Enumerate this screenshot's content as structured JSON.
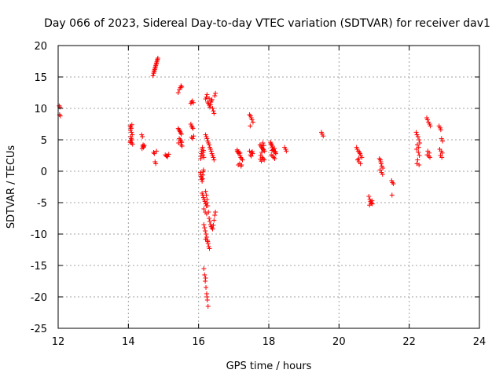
{
  "chart_data": {
    "type": "scatter",
    "title": "Day 066 of 2023, Sidereal Day-to-day VTEC variation (SDTVAR) for receiver dav1",
    "xlabel": "GPS time / hours",
    "ylabel": "SDTVAR / TECUs",
    "xlim": [
      12,
      24
    ],
    "ylim": [
      -25,
      20
    ],
    "xticks": [
      12,
      14,
      16,
      18,
      20,
      22,
      24
    ],
    "yticks": [
      -25,
      -20,
      -15,
      -10,
      -5,
      0,
      5,
      10,
      15,
      20
    ],
    "grid": true,
    "marker": "+",
    "color": "#ff0000",
    "series": [
      {
        "name": "dav1",
        "x": [
          12.03,
          12.05,
          12.04,
          12.06,
          14.05,
          14.07,
          14.08,
          14.1,
          14.06,
          14.09,
          14.11,
          14.07,
          14.08,
          14.1,
          14.06,
          14.09,
          14.12,
          14.05,
          14.38,
          14.4,
          14.42,
          14.44,
          14.41,
          14.43,
          14.39,
          14.45,
          14.7,
          14.72,
          14.74,
          14.76,
          14.78,
          14.8,
          14.82,
          14.84,
          14.73,
          14.77,
          14.81,
          14.79,
          14.75,
          14.83,
          14.72,
          14.74,
          14.76,
          14.78,
          14.8,
          15.05,
          15.08,
          15.1,
          15.12,
          15.15,
          15.42,
          15.45,
          15.48,
          15.5,
          15.52,
          15.44,
          15.47,
          15.49,
          15.51,
          15.46,
          15.43,
          15.5,
          15.53,
          15.42,
          15.45,
          15.48,
          15.5,
          15.52,
          15.78,
          15.8,
          15.82,
          15.85,
          15.78,
          15.8,
          15.82,
          15.84,
          15.86,
          15.8,
          15.83,
          16.05,
          16.06,
          16.07,
          16.08,
          16.09,
          16.1,
          16.11,
          16.12,
          16.13,
          16.14,
          16.06,
          16.07,
          16.08,
          16.09,
          16.1,
          16.11,
          16.12,
          16.13,
          16.14,
          16.15,
          16.1,
          16.12,
          16.14,
          16.16,
          16.18,
          16.2,
          16.22,
          16.24,
          16.15,
          16.19,
          16.23,
          16.15,
          16.17,
          16.19,
          16.21,
          16.23,
          16.25,
          16.27,
          16.2,
          16.24,
          16.15,
          16.17,
          16.19,
          16.21,
          16.23,
          16.25,
          16.27,
          16.29,
          16.31,
          16.2,
          16.26,
          16.2,
          16.22,
          16.24,
          16.26,
          16.28,
          16.3,
          16.32,
          16.34,
          16.36,
          16.38,
          16.4,
          16.42,
          16.44,
          16.46,
          16.48,
          16.2,
          16.22,
          16.24,
          16.26,
          16.28,
          16.3,
          16.32,
          16.34,
          16.36,
          16.38,
          16.4,
          16.42,
          16.44,
          16.46,
          16.48,
          16.3,
          16.35,
          16.2,
          16.22,
          16.24,
          16.26,
          16.28,
          16.3,
          16.32,
          16.34,
          16.36,
          16.38,
          16.4,
          16.42,
          16.44,
          17.1,
          17.12,
          17.15,
          17.18,
          17.2,
          17.22,
          17.25,
          17.13,
          17.17,
          17.21,
          17.1,
          17.14,
          17.18,
          17.22,
          17.45,
          17.48,
          17.5,
          17.52,
          17.55,
          17.47,
          17.51,
          17.54,
          17.45,
          17.48,
          17.5,
          17.53,
          17.75,
          17.78,
          17.8,
          17.82,
          17.85,
          17.88,
          17.77,
          17.81,
          17.84,
          17.87,
          17.79,
          17.83,
          17.76,
          17.8,
          17.84,
          17.86,
          18.05,
          18.08,
          18.1,
          18.12,
          18.15,
          18.18,
          18.2,
          18.07,
          18.11,
          18.14,
          18.17,
          18.06,
          18.1,
          18.13,
          18.16,
          18.19,
          18.09,
          18.45,
          18.48,
          18.5,
          19.5,
          19.52,
          19.55,
          20.5,
          20.52,
          20.55,
          20.58,
          20.6,
          20.62,
          20.65,
          20.53,
          20.57,
          20.61,
          20.56,
          20.85,
          20.88,
          20.9,
          20.92,
          20.95,
          20.87,
          20.91,
          20.94,
          21.15,
          21.18,
          21.2,
          21.22,
          21.25,
          21.17,
          21.21,
          21.24,
          21.19,
          21.5,
          21.52,
          21.55,
          21.51,
          22.2,
          22.22,
          22.25,
          22.28,
          22.3,
          22.23,
          22.27,
          22.21,
          22.26,
          22.29,
          22.24,
          22.22,
          22.28,
          22.5,
          22.52,
          22.55,
          22.58,
          22.6,
          22.53,
          22.57,
          22.51,
          22.56,
          22.59,
          22.85,
          22.88,
          22.9,
          22.92,
          22.95,
          22.87,
          22.91,
          22.94,
          22.89,
          22.93
        ],
        "y": [
          10.4,
          10.2,
          9.0,
          8.8,
          7.2,
          7.0,
          6.8,
          7.4,
          6.5,
          6.2,
          5.8,
          5.5,
          5.2,
          5.0,
          4.8,
          4.5,
          4.3,
          4.6,
          5.8,
          5.5,
          4.2,
          3.9,
          4.0,
          3.8,
          3.6,
          4.1,
          15.2,
          15.6,
          16.0,
          16.4,
          16.8,
          17.2,
          17.6,
          18.0,
          15.8,
          16.6,
          17.4,
          17.0,
          16.2,
          17.8,
          3.0,
          2.8,
          1.5,
          1.2,
          3.2,
          2.6,
          2.4,
          2.5,
          2.3,
          2.7,
          12.5,
          13.0,
          13.3,
          13.6,
          13.4,
          6.6,
          6.3,
          6.1,
          5.9,
          6.5,
          4.5,
          4.2,
          4.0,
          6.8,
          5.2,
          5.0,
          4.8,
          4.6,
          10.8,
          11.0,
          11.2,
          10.9,
          7.5,
          7.2,
          7.0,
          6.8,
          5.6,
          5.4,
          5.2,
          -0.2,
          -0.5,
          -0.8,
          -1.0,
          -1.3,
          -1.6,
          -1.2,
          -0.6,
          -0.1,
          0.2,
          2.0,
          2.4,
          2.8,
          3.2,
          3.5,
          3.8,
          2.6,
          3.0,
          3.3,
          2.2,
          -3.5,
          -3.8,
          -4.2,
          -4.5,
          -4.8,
          -5.2,
          -5.5,
          -5.0,
          -6.0,
          -6.5,
          -6.8,
          -15.5,
          -16.5,
          -17.5,
          -18.5,
          -19.5,
          -20.5,
          -21.5,
          -17.0,
          -20.0,
          -8.5,
          -9.0,
          -9.5,
          -10.0,
          -10.5,
          -11.0,
          -11.5,
          -12.0,
          -12.3,
          -10.8,
          -11.2,
          -3.2,
          -3.8,
          -4.5,
          -5.5,
          -6.5,
          -7.5,
          -8.0,
          -8.5,
          -8.8,
          -9.0,
          -9.2,
          -8.6,
          -7.8,
          -7.0,
          -6.5,
          5.8,
          5.5,
          5.2,
          4.8,
          4.5,
          4.2,
          3.8,
          3.5,
          3.2,
          2.8,
          2.5,
          2.2,
          1.8,
          12.0,
          12.4,
          11.6,
          11.0,
          11.5,
          11.8,
          12.2,
          11.0,
          10.8,
          10.5,
          10.2,
          10.6,
          11.2,
          11.4,
          10.0,
          9.6,
          9.2,
          3.2,
          3.0,
          2.8,
          2.5,
          2.2,
          2.0,
          1.8,
          1.0,
          1.2,
          0.8,
          3.4,
          3.1,
          2.9,
          1.0,
          9.0,
          8.8,
          8.5,
          8.2,
          7.8,
          7.2,
          3.0,
          2.8,
          3.2,
          2.6,
          2.4,
          3.1,
          4.2,
          4.0,
          3.8,
          3.6,
          3.4,
          3.2,
          2.5,
          2.2,
          2.0,
          1.8,
          1.6,
          4.5,
          1.9,
          3.0,
          3.5,
          4.1,
          4.6,
          4.2,
          3.8,
          3.5,
          3.2,
          3.0,
          2.8,
          2.6,
          2.4,
          2.2,
          2.0,
          4.4,
          4.0,
          3.4,
          3.6,
          3.1,
          3.3,
          3.8,
          3.5,
          3.2,
          6.2,
          5.9,
          5.6,
          3.8,
          3.5,
          3.2,
          3.0,
          2.8,
          2.5,
          2.2,
          1.8,
          1.5,
          1.2,
          2.0,
          -4.0,
          -4.5,
          -4.8,
          -5.0,
          -5.2,
          -5.4,
          -5.1,
          -4.7,
          2.0,
          1.8,
          1.2,
          0.8,
          0.5,
          0.2,
          -0.2,
          -0.5,
          1.5,
          -1.5,
          -1.8,
          -2.0,
          -3.8,
          6.2,
          5.8,
          5.5,
          5.0,
          4.5,
          4.2,
          3.8,
          3.5,
          3.0,
          2.5,
          1.8,
          1.2,
          1.0,
          8.5,
          8.2,
          7.8,
          7.5,
          7.2,
          3.2,
          2.9,
          2.6,
          2.4,
          2.2,
          7.2,
          6.9,
          6.6,
          5.2,
          4.8,
          3.5,
          3.2,
          2.9,
          2.5,
          2.2
        ]
      }
    ]
  }
}
